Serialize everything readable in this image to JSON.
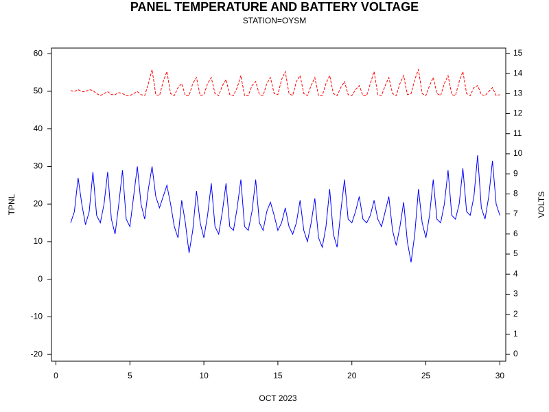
{
  "chart_data": {
    "type": "line",
    "title": "PANEL TEMPERATURE AND BATTERY VOLTAGE",
    "subtitle": "STATION=OYSM",
    "xlabel": "OCT 2023",
    "ylabel": "TPNL",
    "y2label": "VOLTS",
    "x": [
      1,
      1.25,
      1.5,
      1.75,
      2,
      2.25,
      2.5,
      2.75,
      3,
      3.25,
      3.5,
      3.75,
      4,
      4.25,
      4.5,
      4.75,
      5,
      5.25,
      5.5,
      5.75,
      6,
      6.25,
      6.5,
      6.75,
      7,
      7.25,
      7.5,
      7.75,
      8,
      8.25,
      8.5,
      8.75,
      9,
      9.25,
      9.5,
      9.75,
      10,
      10.25,
      10.5,
      10.75,
      11,
      11.25,
      11.5,
      11.75,
      12,
      12.25,
      12.5,
      12.75,
      13,
      13.25,
      13.5,
      13.75,
      14,
      14.25,
      14.5,
      14.75,
      15,
      15.25,
      15.5,
      15.75,
      16,
      16.25,
      16.5,
      16.75,
      17,
      17.25,
      17.5,
      17.75,
      18,
      18.25,
      18.5,
      18.75,
      19,
      19.25,
      19.5,
      19.75,
      20,
      20.25,
      20.5,
      20.75,
      21,
      21.25,
      21.5,
      21.75,
      22,
      22.25,
      22.5,
      22.75,
      23,
      23.25,
      23.5,
      23.75,
      24,
      24.25,
      24.5,
      24.75,
      25,
      25.25,
      25.5,
      25.75,
      26,
      26.25,
      26.5,
      26.75,
      27,
      27.25,
      27.5,
      27.75,
      28,
      28.25,
      28.5,
      28.75,
      29,
      29.25,
      29.5,
      29.75,
      30
    ],
    "series": [
      {
        "color": "#0000ff",
        "axis": "y",
        "dash": false,
        "values": [
          15,
          18,
          27,
          20,
          14.5,
          18,
          28.5,
          17,
          15,
          20,
          28.5,
          16,
          12,
          20,
          29,
          16,
          14,
          22,
          30,
          20,
          16,
          24,
          30,
          22,
          19,
          22,
          25,
          20,
          14,
          11,
          21,
          15,
          7,
          13,
          23.5,
          15,
          11,
          17,
          25.5,
          14,
          12,
          18,
          25.5,
          14,
          13,
          19,
          26.5,
          14,
          13,
          18,
          26.5,
          15,
          13,
          18,
          20.5,
          17,
          13,
          15,
          19,
          14,
          12,
          15,
          21,
          13,
          10,
          15,
          21.5,
          11,
          8.5,
          14,
          24,
          12,
          8.5,
          18,
          26.5,
          16,
          15,
          18,
          22,
          16,
          15,
          17,
          21,
          16,
          14,
          18,
          22,
          13,
          9,
          14,
          20.5,
          10,
          4.5,
          12,
          24,
          15,
          11,
          17,
          26.5,
          16,
          15,
          20,
          29,
          17,
          16,
          20,
          29.5,
          18,
          17,
          22,
          33,
          19,
          16,
          22,
          31.5,
          20,
          17
        ]
      },
      {
        "color": "#ff0000",
        "axis": "y2",
        "dash": true,
        "values": [
          13.15,
          13.1,
          13.2,
          13.1,
          13.1,
          13.2,
          13.15,
          13.0,
          12.9,
          13.0,
          13.1,
          12.95,
          12.95,
          13.05,
          13.0,
          12.9,
          12.9,
          13.0,
          13.1,
          12.95,
          12.9,
          13.5,
          14.2,
          12.95,
          12.9,
          13.6,
          14.1,
          13.0,
          12.9,
          13.3,
          13.5,
          12.9,
          12.9,
          13.5,
          13.8,
          12.9,
          12.95,
          13.5,
          13.8,
          13.0,
          12.9,
          13.4,
          13.7,
          12.95,
          12.9,
          13.3,
          13.9,
          12.9,
          12.9,
          13.4,
          13.6,
          12.95,
          12.9,
          13.5,
          13.8,
          13.0,
          12.95,
          13.7,
          14.1,
          13.0,
          12.9,
          13.6,
          13.9,
          13.0,
          12.9,
          13.4,
          13.8,
          12.9,
          12.9,
          13.5,
          13.9,
          13.0,
          12.9,
          13.3,
          13.6,
          12.95,
          12.9,
          13.2,
          13.4,
          12.9,
          12.9,
          13.5,
          14.1,
          12.95,
          12.9,
          13.4,
          13.8,
          13.0,
          12.9,
          13.5,
          13.9,
          12.95,
          13.0,
          13.7,
          14.2,
          13.0,
          12.9,
          13.4,
          13.8,
          13.0,
          12.9,
          13.5,
          13.9,
          12.95,
          12.9,
          13.6,
          14.1,
          13.0,
          12.9,
          13.3,
          13.4,
          12.95,
          12.9,
          13.1,
          13.3,
          12.9,
          12.95
        ]
      }
    ],
    "xlim": [
      -0.3,
      30.4
    ],
    "xticks": [
      0,
      5,
      10,
      15,
      20,
      25,
      30
    ],
    "ylim": [
      -21.8,
      61.5
    ],
    "yticks": [
      -20,
      -10,
      0,
      10,
      20,
      30,
      40,
      50,
      60
    ],
    "y2lim": [
      -0.34,
      15.27
    ],
    "y2ticks": [
      0,
      1,
      2,
      3,
      4,
      5,
      6,
      7,
      8,
      9,
      10,
      11,
      12,
      13,
      14,
      15
    ]
  }
}
